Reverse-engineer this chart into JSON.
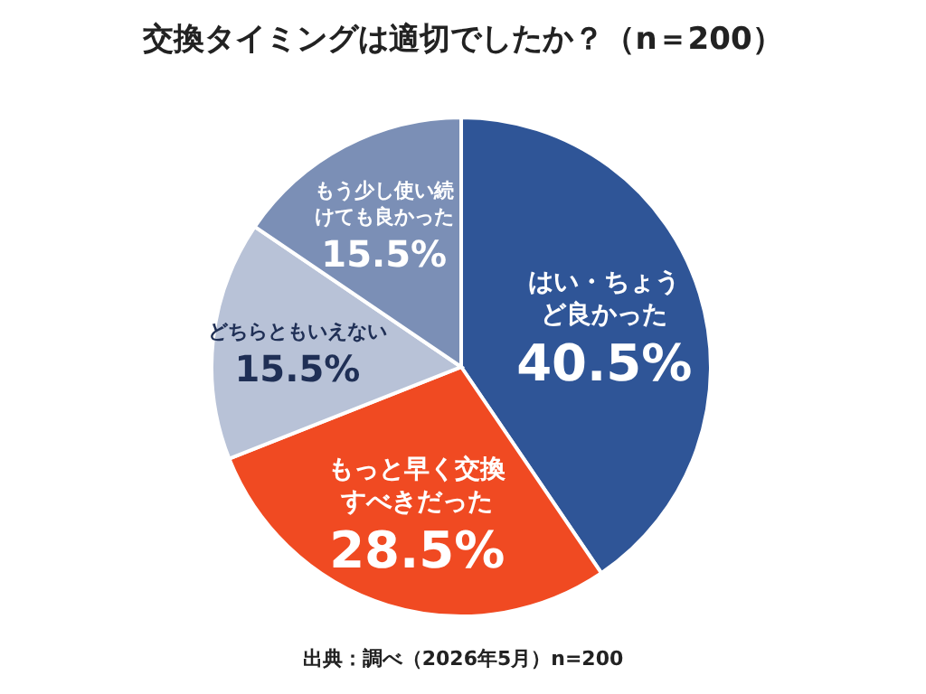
{
  "chart_data": {
    "type": "pie",
    "title": "交換タイミングは適切でしたか？（n＝200）",
    "categories": [
      "はい・ちょうど良かった",
      "もっと早く交換すべきだった",
      "どちらともいえない",
      "もう少し使い続けても良かった"
    ],
    "values": [
      40.5,
      28.5,
      15.5,
      15.5
    ],
    "colors": [
      "#2f5597",
      "#f04a22",
      "#b8c2d7",
      "#7b8fb6"
    ],
    "value_labels": [
      "40.5%",
      "28.5%",
      "15.5%",
      "15.5%"
    ],
    "annotations": [
      "出典：調べ（2026年5月）n=200"
    ]
  }
}
